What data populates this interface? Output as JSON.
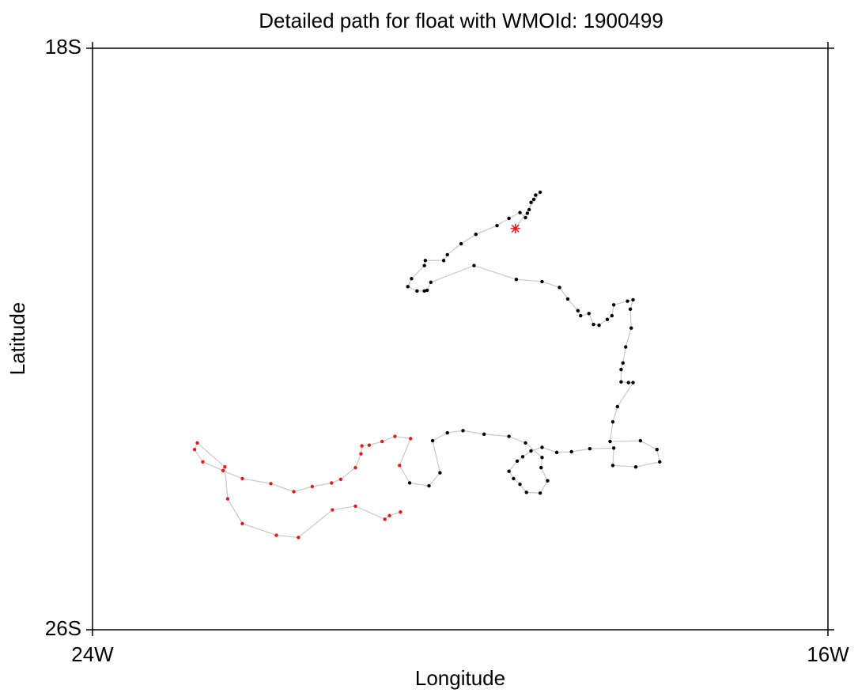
{
  "chart_data": {
    "type": "scatter",
    "title": "Detailed path for float with WMOId: 1900499",
    "x_label": "Longitude",
    "y_label": "Latitude",
    "xlim": [
      -24,
      -16
    ],
    "ylim": [
      -26,
      -18
    ],
    "xticks": [
      {
        "value": -24,
        "label": "24W"
      },
      {
        "value": -16,
        "label": "16W"
      }
    ],
    "yticks": [
      {
        "value": -26,
        "label": "26S"
      },
      {
        "value": -18,
        "label": "18S"
      }
    ],
    "line_color": "#c8c8c8",
    "start": {
      "x": -19.4,
      "y": -20.48,
      "color": "#e31a1c"
    },
    "series": [
      {
        "color": "#000000",
        "x": [
          -19.13,
          -19.18,
          -19.2,
          -19.23,
          -19.25,
          -19.27,
          -19.29,
          -19.35,
          -19.47,
          -19.6,
          -19.83,
          -19.99,
          -20.14,
          -20.18,
          -20.38,
          -20.39,
          -20.53,
          -20.57,
          -20.47,
          -20.39,
          -20.36,
          -20.32,
          -19.85,
          -19.39,
          -19.11,
          -18.92,
          -18.83,
          -18.72,
          -18.69,
          -18.6,
          -18.55,
          -18.49,
          -18.4,
          -18.35,
          -18.33,
          -18.18,
          -18.12,
          -18.15,
          -18.14,
          -18.2,
          -18.23,
          -18.25,
          -18.25,
          -18.17,
          -18.12,
          -18.29,
          -18.34,
          -18.37,
          -18.04,
          -17.86,
          -17.83,
          -18.09,
          -18.34,
          -18.33,
          -18.59,
          -18.79,
          -18.95,
          -19.11,
          -19.23,
          -19.32,
          -19.38,
          -19.47,
          -19.42,
          -19.35,
          -19.28,
          -19.13,
          -19.05,
          -19.12,
          -19.11,
          -19.29,
          -19.47,
          -19.74,
          -19.97,
          -20.14,
          -20.3,
          -20.22,
          -20.34,
          -20.55
        ],
        "y": [
          -19.98,
          -20.02,
          -20.08,
          -20.12,
          -20.22,
          -20.27,
          -20.33,
          -20.26,
          -20.34,
          -20.44,
          -20.56,
          -20.69,
          -20.84,
          -20.92,
          -20.92,
          -20.99,
          -21.17,
          -21.28,
          -21.34,
          -21.34,
          -21.33,
          -21.22,
          -20.99,
          -21.18,
          -21.21,
          -21.29,
          -21.45,
          -21.61,
          -21.68,
          -21.65,
          -21.8,
          -21.81,
          -21.73,
          -21.68,
          -21.53,
          -21.48,
          -21.46,
          -21.59,
          -21.85,
          -22.11,
          -22.33,
          -22.42,
          -22.59,
          -22.6,
          -22.6,
          -22.93,
          -23.14,
          -23.41,
          -23.4,
          -23.52,
          -23.69,
          -23.76,
          -23.74,
          -23.5,
          -23.51,
          -23.55,
          -23.56,
          -23.49,
          -23.54,
          -23.62,
          -23.68,
          -23.82,
          -23.92,
          -24.0,
          -24.11,
          -24.12,
          -23.95,
          -23.77,
          -23.63,
          -23.43,
          -23.34,
          -23.31,
          -23.26,
          -23.29,
          -23.4,
          -23.84,
          -24.02,
          -23.98
        ]
      },
      {
        "color": "#e31a1c",
        "x": [
          -20.66,
          -20.54,
          -20.71,
          -20.85,
          -20.99,
          -21.07,
          -21.08,
          -21.14,
          -21.3,
          -21.4,
          -21.61,
          -21.81,
          -22.06,
          -22.37,
          -22.58,
          -22.8,
          -22.89,
          -22.86,
          -22.56,
          -22.53,
          -22.37,
          -22.0,
          -21.76,
          -21.39,
          -21.14,
          -20.82,
          -20.77,
          -20.65
        ],
        "y": [
          -23.74,
          -23.37,
          -23.34,
          -23.41,
          -23.46,
          -23.47,
          -23.58,
          -23.77,
          -23.93,
          -23.98,
          -24.03,
          -24.1,
          -23.99,
          -23.92,
          -23.81,
          -23.69,
          -23.52,
          -23.43,
          -23.76,
          -24.2,
          -24.54,
          -24.7,
          -24.73,
          -24.35,
          -24.3,
          -24.48,
          -24.43,
          -24.38
        ]
      }
    ]
  }
}
